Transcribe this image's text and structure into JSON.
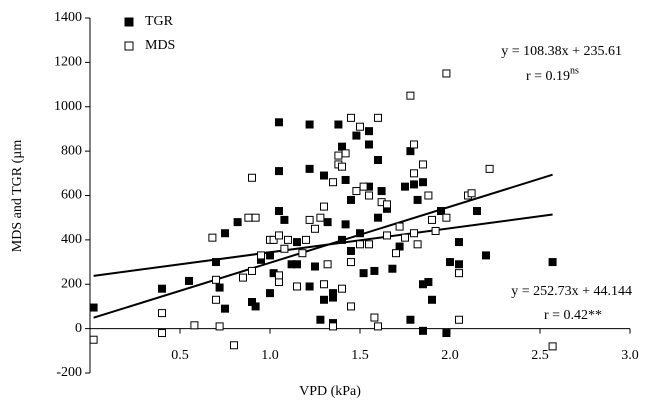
{
  "chart_data": {
    "type": "scatter",
    "x_label": "VPD (kPa)",
    "y_label": "MDS and TGR (µm",
    "xlim": [
      0,
      3
    ],
    "ylim": [
      -200,
      1400
    ],
    "xticks": [
      0.5,
      {
        "value": 1,
        "label": "1.0"
      },
      1.5,
      {
        "value": 2,
        "label": "2.0"
      },
      2.5,
      {
        "value": 3,
        "label": "3.0"
      }
    ],
    "yticks": [
      -200,
      0,
      200,
      400,
      600,
      800,
      1000,
      1200,
      1400
    ],
    "legend": "top-left",
    "series": [
      {
        "name": "TGR",
        "color": "#000000",
        "marker": "filled-square",
        "x": [
          0.02,
          0.4,
          0.55,
          0.7,
          0.72,
          0.75,
          0.75,
          0.82,
          0.9,
          0.92,
          0.95,
          1.0,
          1.02,
          1.05,
          1.05,
          1.05,
          1.08,
          1.12,
          1.15,
          1.22,
          1.22,
          1.25,
          1.28,
          1.3,
          1.32,
          1.35,
          1.35,
          1.35,
          1.38,
          1.4,
          1.4,
          1.42,
          1.42,
          1.45,
          1.45,
          1.48,
          1.5,
          1.52,
          1.55,
          1.55,
          1.55,
          1.58,
          1.6,
          1.6,
          1.62,
          1.65,
          1.68,
          1.72,
          1.75,
          1.78,
          1.78,
          1.8,
          1.82,
          1.85,
          1.85,
          1.85,
          1.88,
          1.9,
          1.95,
          1.98,
          2.0,
          2.05,
          2.05,
          2.15,
          2.2,
          2.57,
          1.3,
          1.22,
          1.0,
          1.15
        ],
        "values": [
          95,
          180,
          215,
          300,
          185,
          430,
          90,
          480,
          120,
          100,
          310,
          330,
          250,
          930,
          710,
          530,
          490,
          290,
          290,
          920,
          720,
          280,
          40,
          690,
          480,
          140,
          160,
          25,
          920,
          820,
          400,
          670,
          470,
          580,
          350,
          870,
          430,
          250,
          890,
          830,
          640,
          260,
          760,
          500,
          620,
          540,
          270,
          370,
          640,
          800,
          40,
          650,
          580,
          660,
          200,
          -10,
          210,
          130,
          530,
          -20,
          300,
          390,
          290,
          530,
          330,
          300,
          130,
          190,
          160,
          390
        ]
      },
      {
        "name": "MDS",
        "color": "#000000",
        "marker": "hollow-square",
        "x": [
          0.02,
          0.4,
          0.4,
          0.58,
          0.68,
          0.7,
          0.7,
          0.72,
          0.8,
          0.85,
          0.88,
          0.9,
          0.9,
          0.92,
          0.95,
          1.0,
          1.02,
          1.05,
          1.05,
          1.05,
          1.08,
          1.1,
          1.15,
          1.18,
          1.2,
          1.22,
          1.25,
          1.28,
          1.3,
          1.32,
          1.35,
          1.35,
          1.38,
          1.38,
          1.4,
          1.4,
          1.42,
          1.45,
          1.45,
          1.48,
          1.5,
          1.52,
          1.55,
          1.55,
          1.58,
          1.6,
          1.6,
          1.62,
          1.65,
          1.65,
          1.7,
          1.72,
          1.75,
          1.78,
          1.8,
          1.8,
          1.8,
          1.82,
          1.85,
          1.88,
          1.9,
          1.92,
          1.98,
          1.98,
          2.05,
          2.05,
          2.1,
          2.12,
          2.22,
          2.57,
          1.3,
          1.5,
          1.45
        ],
        "values": [
          -50,
          -20,
          70,
          15,
          410,
          220,
          130,
          10,
          -75,
          230,
          500,
          680,
          260,
          500,
          330,
          400,
          400,
          420,
          210,
          240,
          360,
          400,
          190,
          340,
          400,
          490,
          450,
          500,
          200,
          290,
          660,
          10,
          780,
          740,
          730,
          180,
          790,
          950,
          100,
          620,
          910,
          640,
          600,
          380,
          50,
          950,
          10,
          570,
          560,
          420,
          340,
          460,
          410,
          1050,
          830,
          700,
          430,
          380,
          740,
          600,
          490,
          440,
          1150,
          500,
          250,
          40,
          600,
          610,
          720,
          -80,
          550,
          380,
          300
        ]
      }
    ],
    "trendlines": [
      {
        "slope": 108.38,
        "intercept": 235.61,
        "equation": "y = 108.38x + 235.61",
        "r": "r = 0.19",
        "r_sup": "ns"
      },
      {
        "slope": 252.73,
        "intercept": 44.144,
        "equation": "y = 252.73x + 44.144",
        "r": "r = 0.42**"
      }
    ]
  }
}
